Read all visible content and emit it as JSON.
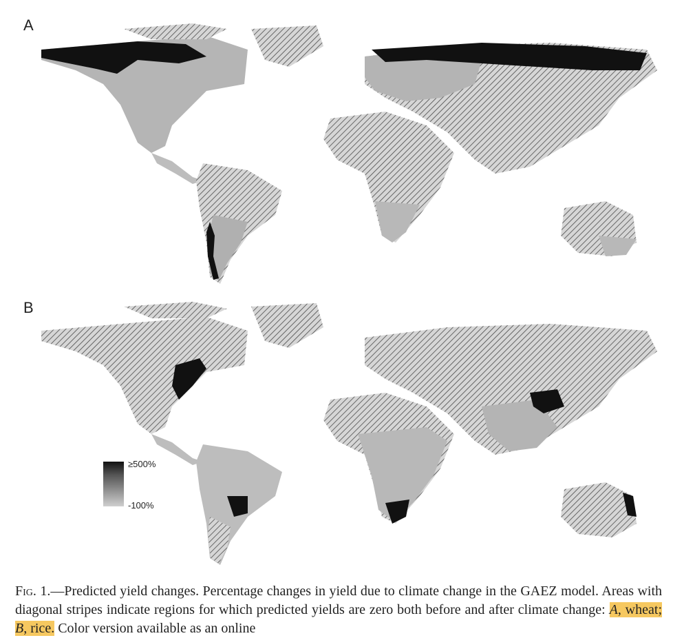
{
  "panels": [
    {
      "label": "A"
    },
    {
      "label": "B"
    }
  ],
  "legend": {
    "max_label": "≥500%",
    "min_label": "-100%"
  },
  "caption": {
    "fig_prefix": "Fig. 1.",
    "text_part1": "—Predicted yield changes. Percentage changes in yield due to climate change in the GAEZ model. Areas with diagonal stripes indicate regions for which predicted yields are zero both before and after climate change: ",
    "a_letter": "A",
    "a_text": ", wheat; ",
    "b_letter": "B",
    "b_text": ", rice.",
    "text_part2": " Color version available as an online"
  },
  "colors": {
    "stripe_land": "#cfcfcf",
    "crop_land": "#a9a9a9",
    "dark_change": "#111111",
    "highlight": "#f6c860"
  }
}
